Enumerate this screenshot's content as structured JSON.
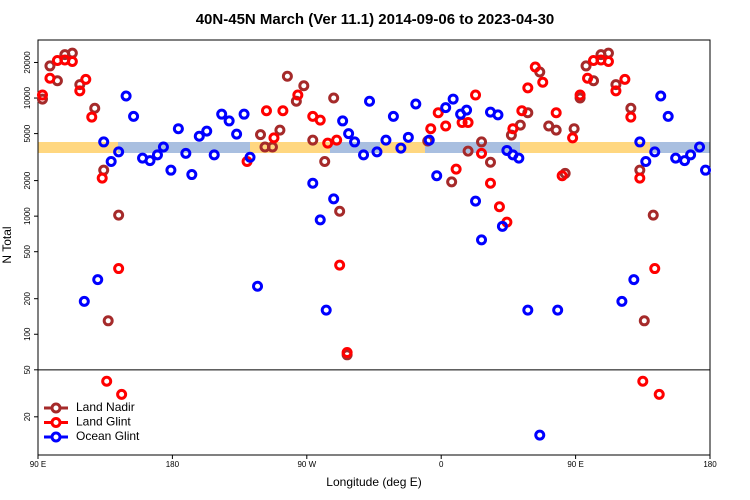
{
  "chart_data": {
    "type": "scatter",
    "title": "40N-45N March (Ver 11.1)   2014-09-06 to 2023-04-30",
    "x_label": "Longitude (deg E)",
    "y_label": "N Total",
    "log_y": true,
    "legend": "lower left",
    "hline": 50,
    "xlim": [
      90,
      540
    ],
    "ylim": [
      9.5,
      31000
    ],
    "xticks": [
      {
        "value": 90,
        "label": "90 E"
      },
      180,
      {
        "value": 270,
        "label": "90 W"
      },
      {
        "value": 360,
        "label": "0"
      },
      {
        "value": 450,
        "label": "90 E"
      },
      {
        "value": 540,
        "label": "180"
      }
    ],
    "yticks": [
      20,
      50,
      100,
      200,
      500,
      1000,
      2000,
      5000,
      10000,
      20000
    ],
    "series": [
      {
        "name": "Land Nadir",
        "color": "#a52a2a",
        "x": [
          93,
          98,
          103,
          108,
          113,
          118,
          128,
          134,
          144,
          137,
          239,
          242,
          247,
          252,
          257,
          263,
          268,
          274,
          282,
          288,
          292,
          297,
          351,
          367,
          378,
          387,
          393,
          407,
          413,
          418,
          426,
          432,
          437,
          443,
          449,
          453,
          457,
          462,
          467,
          472,
          477,
          487,
          493,
          502,
          496
        ],
        "values": [
          9800,
          18700,
          14000,
          23300,
          24000,
          13000,
          8200,
          2450,
          1020,
          130,
          4900,
          3850,
          3850,
          5350,
          15300,
          9400,
          12700,
          4400,
          2900,
          10000,
          1100,
          67,
          4330,
          1950,
          3550,
          4250,
          2860,
          4850,
          5900,
          7500,
          16600,
          5800,
          5350,
          2300,
          5500,
          10000,
          18700,
          14000,
          23300,
          24000,
          13000,
          8200,
          2450,
          1020,
          130
        ]
      },
      {
        "name": "Land Glint",
        "color": "#ff0000",
        "x": [
          93,
          98,
          103,
          108,
          113,
          118,
          122,
          126,
          133,
          144,
          136,
          146,
          230,
          243,
          248,
          254,
          264,
          274,
          279,
          284,
          290,
          292,
          297,
          353,
          358,
          363,
          370,
          374,
          378,
          383,
          387,
          393,
          399,
          404,
          408,
          414,
          418,
          423,
          428,
          437,
          441,
          448,
          453,
          458,
          462,
          467,
          472,
          477,
          483,
          487,
          493,
          503,
          495,
          506
        ],
        "values": [
          10600,
          14700,
          20800,
          21000,
          20400,
          11500,
          14400,
          6900,
          2100,
          360,
          40,
          31,
          2900,
          7800,
          4600,
          7800,
          10600,
          7000,
          6500,
          4150,
          4400,
          385,
          70,
          5500,
          7500,
          5800,
          2500,
          6200,
          6200,
          10600,
          3400,
          1900,
          1200,
          890,
          5500,
          7800,
          12200,
          18300,
          13600,
          7500,
          2200,
          4600,
          10600,
          14700,
          20800,
          21000,
          20400,
          11500,
          14400,
          6900,
          2100,
          360,
          40,
          31
        ]
      },
      {
        "name": "Ocean Glint",
        "color": "#0000ff",
        "x": [
          121,
          130,
          134,
          139,
          144,
          149,
          154,
          160,
          165,
          170,
          174,
          179,
          184,
          189,
          193,
          198,
          203,
          208,
          213,
          218,
          223,
          228,
          232,
          237,
          274,
          279,
          283,
          288,
          294,
          298,
          302,
          308,
          312,
          317,
          323,
          328,
          333,
          338,
          343,
          352,
          357,
          363,
          368,
          373,
          377,
          383,
          387,
          393,
          398,
          401,
          404,
          408,
          412,
          418,
          426,
          438,
          481,
          489,
          493,
          497,
          503,
          507,
          512,
          517,
          523,
          527,
          533,
          537
        ],
        "values": [
          190,
          290,
          4250,
          2900,
          3500,
          10400,
          7000,
          3100,
          2950,
          3300,
          3850,
          2450,
          5500,
          3400,
          2250,
          4750,
          5250,
          3300,
          7300,
          6400,
          4950,
          7300,
          3150,
          255,
          1900,
          930,
          160,
          1400,
          6400,
          5000,
          4250,
          3300,
          9400,
          3500,
          4400,
          7000,
          3770,
          4650,
          8900,
          4400,
          2200,
          8300,
          9800,
          7300,
          7900,
          1340,
          630,
          7600,
          7200,
          820,
          3600,
          3300,
          3100,
          160,
          14,
          160,
          190,
          290,
          4250,
          2900,
          3500,
          10400,
          7000,
          3100,
          2950,
          3300,
          3850,
          2450
        ]
      }
    ]
  }
}
